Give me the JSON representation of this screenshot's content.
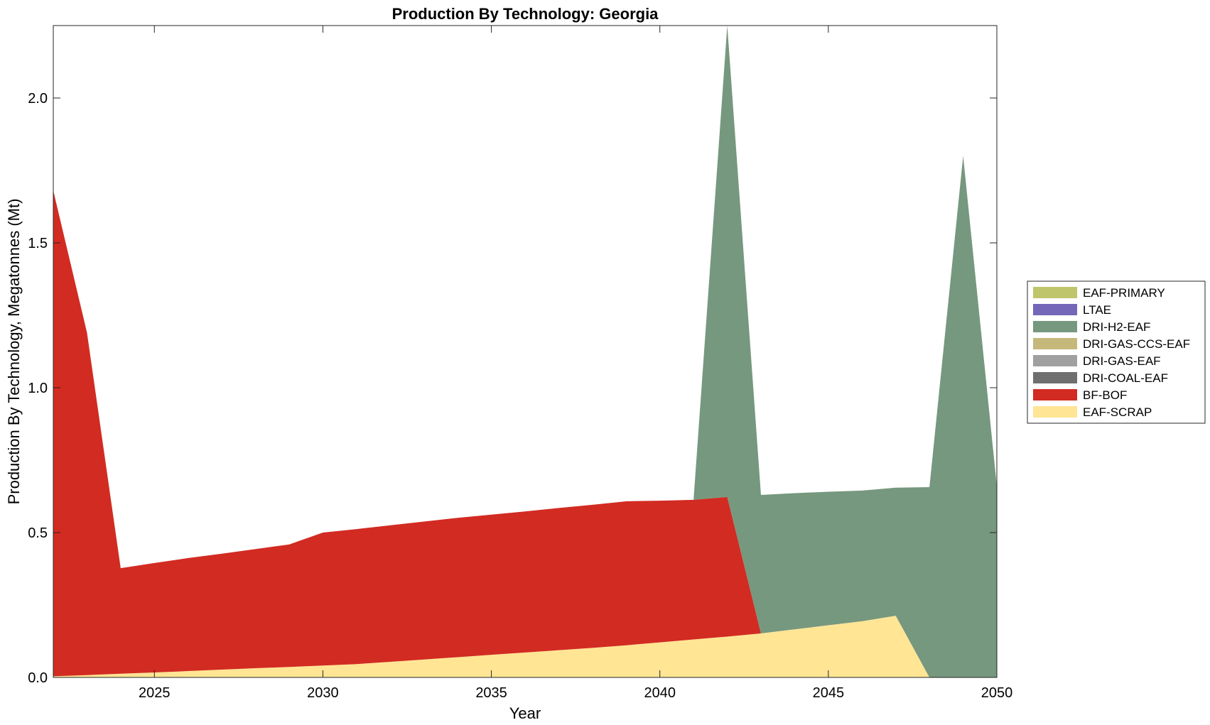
{
  "chart_data": {
    "type": "area",
    "stacked": true,
    "title": "Production By Technology: Georgia",
    "xlabel": "Year",
    "ylabel": "Production By Technology, Megatonnes (Mt)",
    "xlim": [
      2022,
      2050
    ],
    "ylim": [
      0,
      2.25
    ],
    "xticks": [
      2025,
      2030,
      2035,
      2040,
      2045,
      2050
    ],
    "yticks": [
      "0.0",
      "0.5",
      "1.0",
      "1.5",
      "2.0"
    ],
    "x": [
      2022,
      2023,
      2024,
      2025,
      2026,
      2027,
      2028,
      2029,
      2030,
      2031,
      2032,
      2033,
      2034,
      2035,
      2036,
      2037,
      2038,
      2039,
      2040,
      2041,
      2042,
      2043,
      2044,
      2045,
      2046,
      2047,
      2048,
      2049,
      2050
    ],
    "series": [
      {
        "name": "EAF-SCRAP",
        "color": "#FFE594",
        "values": [
          0.004,
          0.008,
          0.013,
          0.017,
          0.022,
          0.027,
          0.032,
          0.036,
          0.041,
          0.046,
          0.054,
          0.062,
          0.07,
          0.078,
          0.086,
          0.094,
          0.102,
          0.111,
          0.121,
          0.131,
          0.141,
          0.152,
          0.166,
          0.18,
          0.194,
          0.213,
          0.0,
          0.0,
          0.0
        ]
      },
      {
        "name": "BF-BOF",
        "color": "#D22B22",
        "values": [
          1.676,
          1.182,
          0.364,
          0.378,
          0.39,
          0.4,
          0.411,
          0.423,
          0.459,
          0.466,
          0.471,
          0.476,
          0.481,
          0.484,
          0.487,
          0.491,
          0.494,
          0.497,
          0.489,
          0.482,
          0.482,
          0.0,
          0.0,
          0.0,
          0.0,
          0.0,
          0.0,
          0.0,
          0.0
        ]
      },
      {
        "name": "DRI-COAL-EAF",
        "color": "#6F6F6F",
        "values": [
          0,
          0,
          0,
          0,
          0,
          0,
          0,
          0,
          0,
          0,
          0,
          0,
          0,
          0,
          0,
          0,
          0,
          0,
          0,
          0,
          0,
          0,
          0,
          0,
          0,
          0,
          0,
          0,
          0
        ]
      },
      {
        "name": "DRI-GAS-EAF",
        "color": "#A0A0A0",
        "values": [
          0,
          0,
          0,
          0,
          0,
          0,
          0,
          0,
          0,
          0,
          0,
          0,
          0,
          0,
          0,
          0,
          0,
          0,
          0,
          0,
          0,
          0,
          0,
          0,
          0,
          0,
          0,
          0,
          0
        ]
      },
      {
        "name": "DRI-GAS-CCS-EAF",
        "color": "#C5B87A",
        "values": [
          0,
          0,
          0,
          0,
          0,
          0,
          0,
          0,
          0,
          0,
          0,
          0,
          0,
          0,
          0,
          0,
          0,
          0,
          0,
          0,
          0,
          0,
          0,
          0,
          0,
          0,
          0,
          0,
          0
        ]
      },
      {
        "name": "DRI-H2-EAF",
        "color": "#76987E",
        "values": [
          0,
          0,
          0,
          0,
          0,
          0,
          0,
          0,
          0,
          0,
          0,
          0,
          0,
          0,
          0,
          0,
          0,
          0,
          0,
          0,
          1.627,
          0.478,
          0.47,
          0.461,
          0.451,
          0.442,
          0.657,
          1.8,
          0.66
        ]
      },
      {
        "name": "LTAE",
        "color": "#7466B8",
        "values": [
          0,
          0,
          0,
          0,
          0,
          0,
          0,
          0,
          0,
          0,
          0,
          0,
          0,
          0,
          0,
          0,
          0,
          0,
          0,
          0,
          0,
          0,
          0,
          0,
          0,
          0,
          0,
          0,
          0
        ]
      },
      {
        "name": "EAF-PRIMARY",
        "color": "#BFC56B",
        "values": [
          0,
          0,
          0,
          0,
          0,
          0,
          0,
          0,
          0,
          0,
          0,
          0,
          0,
          0,
          0,
          0,
          0,
          0,
          0,
          0,
          0,
          0,
          0,
          0,
          0,
          0,
          0,
          0,
          0
        ]
      }
    ],
    "legend": {
      "placement": "outside-right",
      "entries": [
        "EAF-PRIMARY",
        "LTAE",
        "DRI-H2-EAF",
        "DRI-GAS-CCS-EAF",
        "DRI-GAS-EAF",
        "DRI-COAL-EAF",
        "BF-BOF",
        "EAF-SCRAP"
      ]
    },
    "grid": false
  }
}
